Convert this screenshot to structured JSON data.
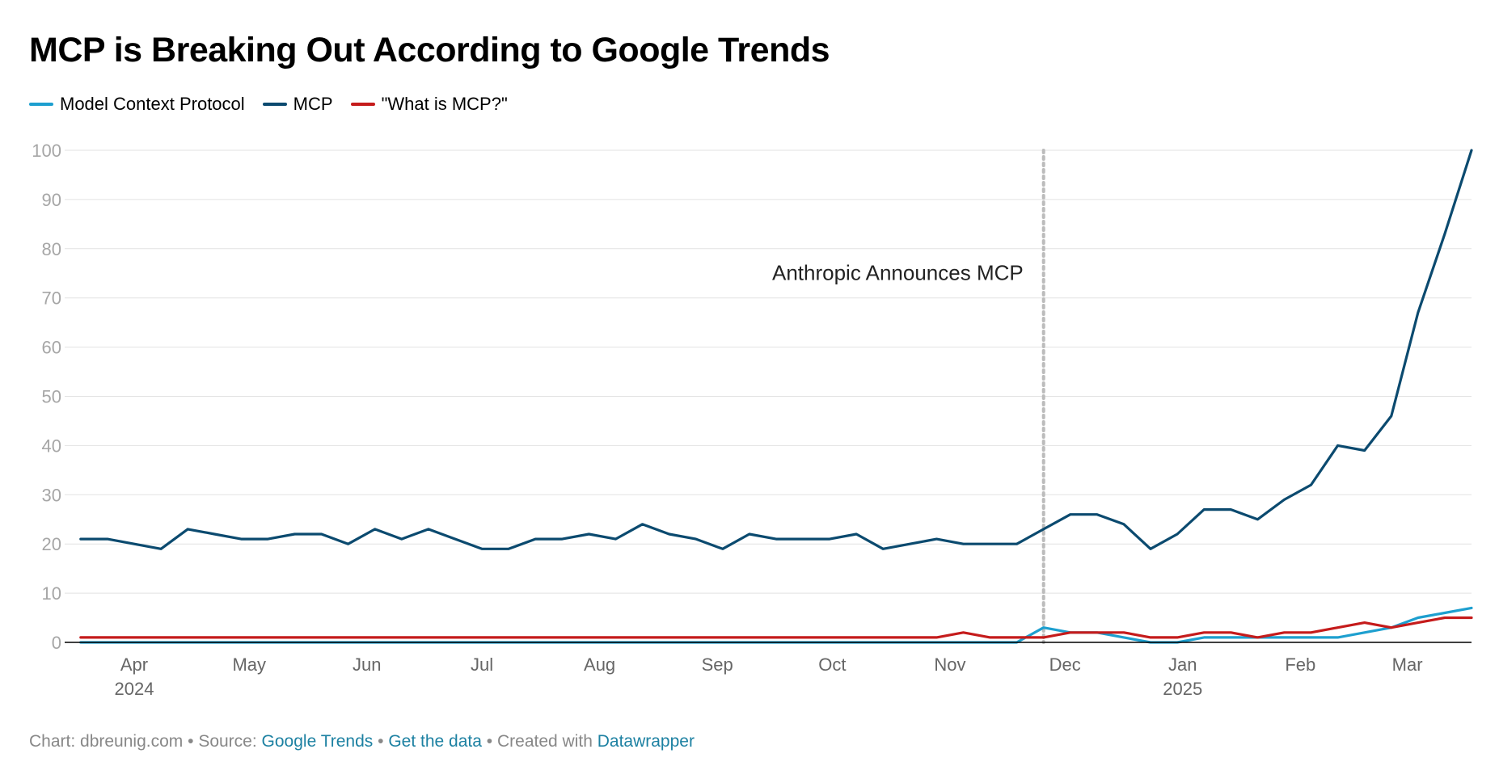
{
  "title": "MCP is Breaking Out According to Google Trends",
  "footer": {
    "chart_credit": "Chart: dbreunig.com",
    "source_label": "Source:",
    "source_link": "Google Trends",
    "data_link": "Get the data",
    "created_with": "Created with",
    "tool_link": "Datawrapper",
    "separator": "•"
  },
  "colors": {
    "mcp": "#0b4a6f",
    "model_context_protocol": "#1d9fcf",
    "what_is_mcp": "#c51b1b",
    "grid": "#e2e2e2",
    "axis_text": "#a6a6a6",
    "month_text": "#666666",
    "annotation_line": "#bcbcbc"
  },
  "chart_data": {
    "type": "line",
    "title": "MCP is Breaking Out According to Google Trends",
    "xlabel": "",
    "ylabel": "",
    "ylim": [
      0,
      100
    ],
    "yticks": [
      0,
      10,
      20,
      30,
      40,
      50,
      60,
      70,
      80,
      90,
      100
    ],
    "x_start_week": -0.6,
    "x_end_week": 52,
    "month_ticks": [
      {
        "label": "Apr",
        "week": 2.0,
        "year": "2024"
      },
      {
        "label": "May",
        "week": 6.3
      },
      {
        "label": "Jun",
        "week": 10.7
      },
      {
        "label": "Jul",
        "week": 15.0
      },
      {
        "label": "Aug",
        "week": 19.4
      },
      {
        "label": "Sep",
        "week": 23.8
      },
      {
        "label": "Oct",
        "week": 28.1
      },
      {
        "label": "Nov",
        "week": 32.5
      },
      {
        "label": "Dec",
        "week": 36.8
      },
      {
        "label": "Jan",
        "week": 41.2,
        "year": "2025"
      },
      {
        "label": "Feb",
        "week": 45.6
      },
      {
        "label": "Mar",
        "week": 49.6
      }
    ],
    "annotation": {
      "label": "Anthropic Announces MCP",
      "week": 36,
      "y": 75
    },
    "series": [
      {
        "name": "Model Context Protocol",
        "color_key": "model_context_protocol",
        "values": [
          0,
          0,
          0,
          0,
          0,
          0,
          0,
          0,
          0,
          0,
          0,
          0,
          0,
          0,
          0,
          0,
          0,
          0,
          0,
          0,
          0,
          0,
          0,
          0,
          0,
          0,
          0,
          0,
          0,
          0,
          0,
          0,
          0,
          0,
          0,
          0,
          3,
          2,
          2,
          1,
          0,
          0,
          1,
          1,
          1,
          1,
          1,
          1,
          2,
          3,
          5,
          6,
          7
        ]
      },
      {
        "name": "MCP",
        "color_key": "mcp",
        "values": [
          21,
          21,
          20,
          19,
          23,
          22,
          21,
          21,
          22,
          22,
          20,
          23,
          21,
          23,
          21,
          19,
          19,
          21,
          21,
          22,
          21,
          24,
          22,
          21,
          19,
          22,
          21,
          21,
          21,
          22,
          19,
          20,
          21,
          20,
          20,
          20,
          23,
          26,
          26,
          24,
          19,
          22,
          27,
          27,
          25,
          29,
          32,
          40,
          39,
          46,
          67,
          83,
          100
        ]
      },
      {
        "name": "\"What is MCP?\"",
        "color_key": "what_is_mcp",
        "values": [
          1,
          1,
          1,
          1,
          1,
          1,
          1,
          1,
          1,
          1,
          1,
          1,
          1,
          1,
          1,
          1,
          1,
          1,
          1,
          1,
          1,
          1,
          1,
          1,
          1,
          1,
          1,
          1,
          1,
          1,
          1,
          1,
          1,
          2,
          1,
          1,
          1,
          2,
          2,
          2,
          1,
          1,
          2,
          2,
          1,
          2,
          2,
          3,
          4,
          3,
          4,
          5,
          5
        ]
      }
    ]
  }
}
